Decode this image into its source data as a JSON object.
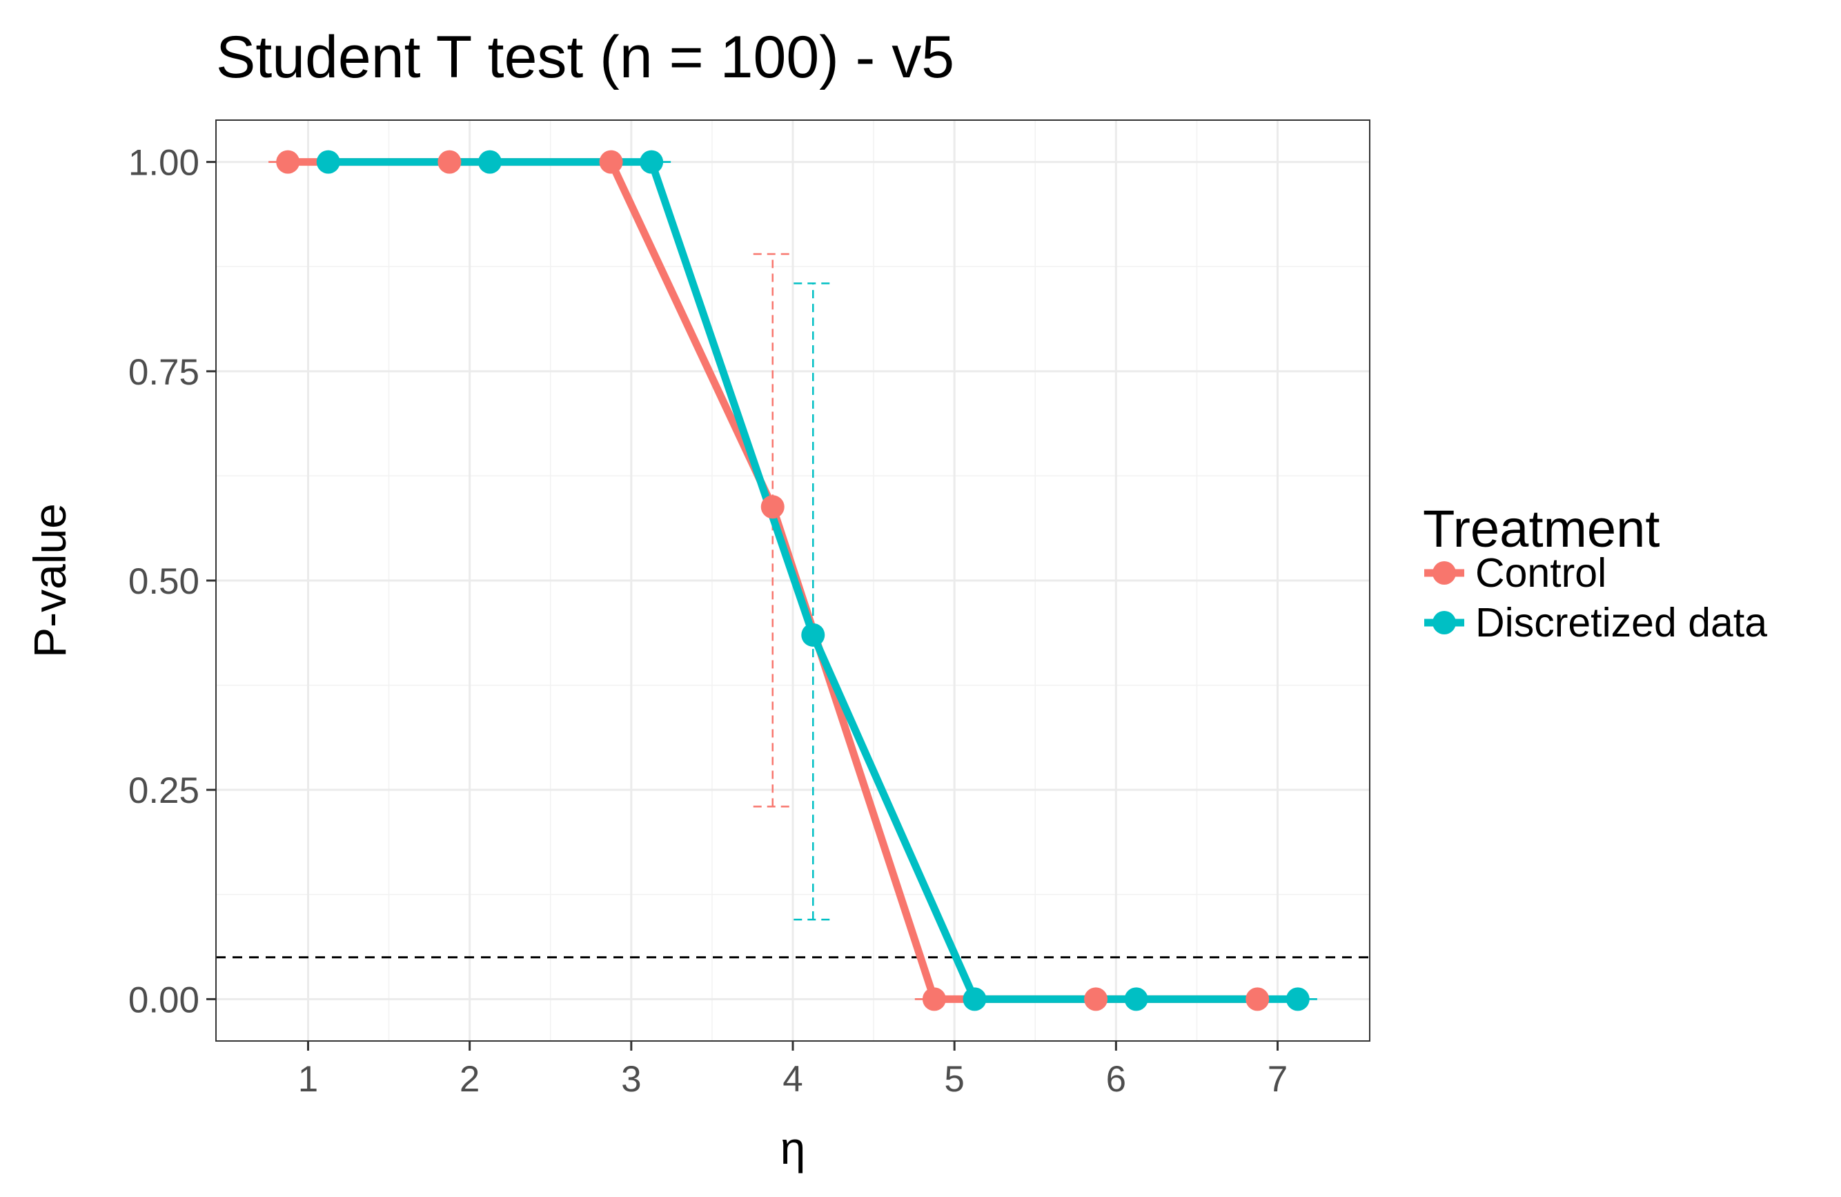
{
  "chart_data": {
    "type": "line",
    "title": "Student T test (n = 100) - v5",
    "xlabel": "η",
    "ylabel": "P-value",
    "x_ticks": [
      "1",
      "2",
      "3",
      "4",
      "5",
      "6",
      "7"
    ],
    "y_ticks": [
      "0.00",
      "0.25",
      "0.50",
      "0.75",
      "1.00"
    ],
    "xlim": [
      0.43,
      7.57
    ],
    "ylim": [
      -0.05,
      1.05
    ],
    "grid": true,
    "reference_line": {
      "y": 0.05,
      "style": "dashed",
      "color": "#000000"
    },
    "legend": {
      "title": "Treatment",
      "position": "right",
      "entries": [
        "Control",
        "Discretized data"
      ]
    },
    "series": [
      {
        "name": "Control",
        "color": "#f8766d",
        "points": [
          {
            "x": 0.875,
            "y": 1.0,
            "low": 1.0,
            "high": 1.0
          },
          {
            "x": 1.875,
            "y": 1.0,
            "low": 1.0,
            "high": 1.0
          },
          {
            "x": 2.875,
            "y": 1.0,
            "low": 1.0,
            "high": 1.0
          },
          {
            "x": 3.875,
            "y": 0.588,
            "low": 0.23,
            "high": 0.89
          },
          {
            "x": 4.875,
            "y": 0.0,
            "low": 0.0,
            "high": 0.0
          },
          {
            "x": 5.875,
            "y": 0.0,
            "low": 0.0,
            "high": 0.0
          },
          {
            "x": 6.875,
            "y": 0.0,
            "low": 0.0,
            "high": 0.0
          }
        ]
      },
      {
        "name": "Discretized data",
        "color": "#00bfc4",
        "points": [
          {
            "x": 1.125,
            "y": 1.0,
            "low": 1.0,
            "high": 1.0
          },
          {
            "x": 2.125,
            "y": 1.0,
            "low": 1.0,
            "high": 1.0
          },
          {
            "x": 3.125,
            "y": 1.0,
            "low": 1.0,
            "high": 1.0
          },
          {
            "x": 4.125,
            "y": 0.435,
            "low": 0.095,
            "high": 0.855
          },
          {
            "x": 5.125,
            "y": 0.0,
            "low": 0.0,
            "high": 0.0
          },
          {
            "x": 6.125,
            "y": 0.0,
            "low": 0.0,
            "high": 0.0
          },
          {
            "x": 7.125,
            "y": 0.0,
            "low": 0.0,
            "high": 0.0
          }
        ]
      }
    ]
  }
}
